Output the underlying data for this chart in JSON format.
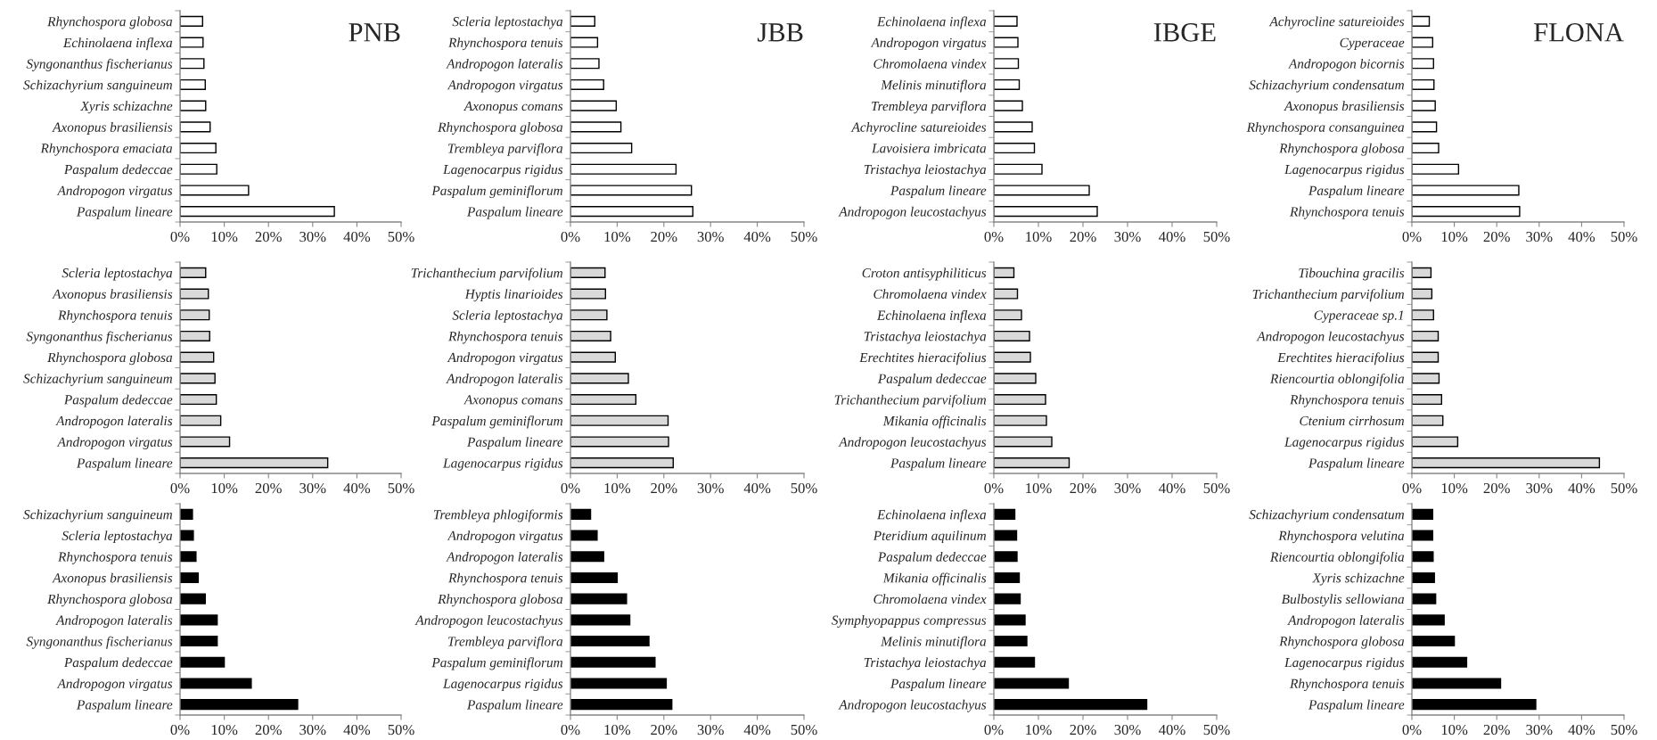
{
  "chart_data": [
    {
      "type": "bar",
      "orientation": "horizontal",
      "title": "PNB",
      "color": "#ffffff",
      "xlim": [
        0,
        50
      ],
      "xticks": [
        {
          "value": 0,
          "label": "0%"
        },
        {
          "value": 10,
          "label": "10%"
        },
        {
          "value": 20,
          "label": "20%"
        },
        {
          "value": 30,
          "label": "30%"
        },
        {
          "value": 40,
          "label": "40%"
        },
        {
          "value": 50,
          "label": "50%"
        }
      ],
      "categories": [
        "Rhynchospora globosa",
        "Echinolaena inflexa",
        "Syngonanthus fischerianus",
        "Schizachyrium sanguineum",
        "Xyris schizachne",
        "Axonopus brasiliensis",
        "Rhynchospora emaciata",
        "Paspalum dedeccae",
        "Andropogon virgatus",
        "Paspalum lineare"
      ],
      "values": [
        5.1,
        5.2,
        5.4,
        5.7,
        5.8,
        6.8,
        8.1,
        8.3,
        15.5,
        34.9
      ]
    },
    {
      "type": "bar",
      "orientation": "horizontal",
      "title": "JBB",
      "color": "#ffffff",
      "xlim": [
        0,
        50
      ],
      "xticks": [
        {
          "value": 0,
          "label": "0%"
        },
        {
          "value": 10,
          "label": "10%"
        },
        {
          "value": 20,
          "label": "20%"
        },
        {
          "value": 30,
          "label": "30%"
        },
        {
          "value": 40,
          "label": "40%"
        },
        {
          "value": 50,
          "label": "50%"
        }
      ],
      "categories": [
        "Scleria leptostachya",
        "Rhynchospora tenuis",
        "Andropogon lateralis",
        "Andropogon virgatus",
        "Axonopus comans",
        "Rhynchospora globosa",
        "Trembleya parviflora",
        "Lagenocarpus rigidus",
        "Paspalum geminiflorum",
        "Paspalum lineare"
      ],
      "values": [
        5.2,
        5.8,
        6.1,
        7.1,
        9.8,
        10.8,
        13.1,
        22.6,
        25.9,
        26.2
      ]
    },
    {
      "type": "bar",
      "orientation": "horizontal",
      "title": "IBGE",
      "color": "#ffffff",
      "xlim": [
        0,
        50
      ],
      "xticks": [
        {
          "value": 0,
          "label": "0%"
        },
        {
          "value": 10,
          "label": "10%"
        },
        {
          "value": 20,
          "label": "20%"
        },
        {
          "value": 30,
          "label": "30%"
        },
        {
          "value": 40,
          "label": "40%"
        },
        {
          "value": 50,
          "label": "50%"
        }
      ],
      "categories": [
        "Echinolaena inflexa",
        "Andropogon virgatus",
        "Chromolaena vindex",
        "Melinis minutiflora",
        "Trembleya parviflora",
        "Achyrocline satureioides",
        "Lavoisiera imbricata",
        "Tristachya leiostachya",
        "Paspalum lineare",
        "Andropogon leucostachyus"
      ],
      "values": [
        5.2,
        5.4,
        5.5,
        5.7,
        6.4,
        8.6,
        9.1,
        10.8,
        21.4,
        23.2
      ]
    },
    {
      "type": "bar",
      "orientation": "horizontal",
      "title": "FLONA",
      "color": "#ffffff",
      "xlim": [
        0,
        50
      ],
      "xticks": [
        {
          "value": 0,
          "label": "0%"
        },
        {
          "value": 10,
          "label": "10%"
        },
        {
          "value": 20,
          "label": "20%"
        },
        {
          "value": 30,
          "label": "30%"
        },
        {
          "value": 40,
          "label": "40%"
        },
        {
          "value": 50,
          "label": "50%"
        }
      ],
      "categories": [
        "Achyrocline satureioides",
        "Cyperaceae",
        "Andropogon bicornis",
        "Schizachyrium condensatum",
        "Axonopus brasiliensis",
        "Rhynchospora consanguinea",
        "Rhynchospora globosa",
        "Lagenocarpus rigidus",
        "Paspalum lineare",
        "Rhynchospora tenuis"
      ],
      "values": [
        4.1,
        4.9,
        5.1,
        5.2,
        5.5,
        5.8,
        6.3,
        11.0,
        25.2,
        25.4
      ]
    },
    {
      "type": "bar",
      "orientation": "horizontal",
      "color": "#d9d9d9",
      "xlim": [
        0,
        50
      ],
      "xticks": [
        {
          "value": 0,
          "label": "0%"
        },
        {
          "value": 10,
          "label": "10%"
        },
        {
          "value": 20,
          "label": "20%"
        },
        {
          "value": 30,
          "label": "30%"
        },
        {
          "value": 40,
          "label": "40%"
        },
        {
          "value": 50,
          "label": "50%"
        }
      ],
      "categories": [
        "Scleria leptostachya",
        "Axonopus brasiliensis",
        "Rhynchospora tenuis",
        "Syngonanthus fischerianus",
        "Rhynchospora globosa",
        "Schizachyrium sanguineum",
        "Paspalum dedeccae",
        "Andropogon lateralis",
        "Andropogon virgatus",
        "Paspalum lineare"
      ],
      "values": [
        5.8,
        6.4,
        6.6,
        6.7,
        7.6,
        7.9,
        8.2,
        9.2,
        11.2,
        33.4
      ]
    },
    {
      "type": "bar",
      "orientation": "horizontal",
      "color": "#d9d9d9",
      "xlim": [
        0,
        50
      ],
      "xticks": [
        {
          "value": 0,
          "label": "0%"
        },
        {
          "value": 10,
          "label": "10%"
        },
        {
          "value": 20,
          "label": "20%"
        },
        {
          "value": 30,
          "label": "30%"
        },
        {
          "value": 40,
          "label": "40%"
        },
        {
          "value": 50,
          "label": "50%"
        }
      ],
      "categories": [
        "Trichanthecium parvifolium",
        "Hyptis linarioides",
        "Scleria leptostachya",
        "Rhynchospora tenuis",
        "Andropogon virgatus",
        "Andropogon lateralis",
        "Axonopus comans",
        "Paspalum geminiflorum",
        "Paspalum lineare",
        "Lagenocarpus rigidus"
      ],
      "values": [
        7.4,
        7.5,
        7.8,
        8.6,
        9.6,
        12.4,
        14.0,
        20.9,
        21.0,
        22.0
      ]
    },
    {
      "type": "bar",
      "orientation": "horizontal",
      "color": "#d9d9d9",
      "xlim": [
        0,
        50
      ],
      "xticks": [
        {
          "value": 0,
          "label": "0%"
        },
        {
          "value": 10,
          "label": "10%"
        },
        {
          "value": 20,
          "label": "20%"
        },
        {
          "value": 30,
          "label": "30%"
        },
        {
          "value": 40,
          "label": "40%"
        },
        {
          "value": 50,
          "label": "50%"
        }
      ],
      "categories": [
        "Croton antisyphiliticus",
        "Chromolaena vindex",
        "Echinolaena inflexa",
        "Tristachya leiostachya",
        "Erechtites hieracifolius",
        "Paspalum dedeccae",
        "Trichanthecium parvifolium",
        "Mikania officinalis",
        "Andropogon leucostachyus",
        "Paspalum lineare"
      ],
      "values": [
        4.5,
        5.3,
        6.2,
        8.0,
        8.2,
        9.4,
        11.6,
        11.8,
        13.0,
        16.9
      ]
    },
    {
      "type": "bar",
      "orientation": "horizontal",
      "color": "#d9d9d9",
      "xlim": [
        0,
        50
      ],
      "xticks": [
        {
          "value": 0,
          "label": "0%"
        },
        {
          "value": 10,
          "label": "10%"
        },
        {
          "value": 20,
          "label": "20%"
        },
        {
          "value": 30,
          "label": "30%"
        },
        {
          "value": 40,
          "label": "40%"
        },
        {
          "value": 50,
          "label": "50%"
        }
      ],
      "categories": [
        "Tibouchina gracilis",
        "Trichanthecium parvifolium",
        "Cyperaceae sp.1",
        "Andropogon leucostachyus",
        "Erechtites hieracifolius",
        "Riencourtia oblongifolia",
        "Rhynchospora tenuis",
        "Ctenium cirrhosum",
        "Lagenocarpus rigidus",
        "Paspalum lineare"
      ],
      "values": [
        4.5,
        4.7,
        5.1,
        6.2,
        6.2,
        6.4,
        7.0,
        7.3,
        10.8,
        44.2
      ]
    },
    {
      "type": "bar",
      "orientation": "horizontal",
      "color": "#000000",
      "xlim": [
        0,
        50
      ],
      "xticks": [
        {
          "value": 0,
          "label": "0%"
        },
        {
          "value": 10,
          "label": "10%"
        },
        {
          "value": 20,
          "label": "20%"
        },
        {
          "value": 30,
          "label": "30%"
        },
        {
          "value": 40,
          "label": "40%"
        },
        {
          "value": 50,
          "label": "50%"
        }
      ],
      "categories": [
        "Schizachyrium sanguineum",
        "Scleria leptostachya",
        "Rhynchospora tenuis",
        "Axonopus brasiliensis",
        "Rhynchospora globosa",
        "Andropogon lateralis",
        "Syngonanthus fischerianus",
        "Paspalum dedeccae",
        "Andropogon virgatus",
        "Paspalum lineare"
      ],
      "values": [
        2.8,
        3.0,
        3.6,
        4.1,
        5.7,
        8.4,
        8.4,
        10.0,
        16.1,
        26.6
      ]
    },
    {
      "type": "bar",
      "orientation": "horizontal",
      "color": "#000000",
      "xlim": [
        0,
        50
      ],
      "xticks": [
        {
          "value": 0,
          "label": "0%"
        },
        {
          "value": 10,
          "label": "10%"
        },
        {
          "value": 20,
          "label": "20%"
        },
        {
          "value": 30,
          "label": "30%"
        },
        {
          "value": 40,
          "label": "40%"
        },
        {
          "value": 50,
          "label": "50%"
        }
      ],
      "categories": [
        "Trembleya phlogiformis",
        "Andropogon virgatus",
        "Andropogon lateralis",
        "Rhynchospora tenuis",
        "Rhynchospora globosa",
        "Andropogon leucostachyus",
        "Trembleya parviflora",
        "Paspalum geminiflorum",
        "Lagenocarpus rigidus",
        "Paspalum lineare"
      ],
      "values": [
        4.3,
        5.7,
        7.1,
        10.0,
        12.0,
        12.7,
        16.8,
        18.1,
        20.5,
        21.7
      ]
    },
    {
      "type": "bar",
      "orientation": "horizontal",
      "color": "#000000",
      "xlim": [
        0,
        50
      ],
      "xticks": [
        {
          "value": 0,
          "label": "0%"
        },
        {
          "value": 10,
          "label": "10%"
        },
        {
          "value": 20,
          "label": "20%"
        },
        {
          "value": 30,
          "label": "30%"
        },
        {
          "value": 40,
          "label": "40%"
        },
        {
          "value": 50,
          "label": "50%"
        }
      ],
      "categories": [
        "Echinolaena inflexa",
        "Pteridium aquilinum",
        "Paspalum dedeccae",
        "Mikania officinalis",
        "Chromolaena vindex",
        "Symphyopappus compressus",
        "Melinis minutiflora",
        "Tristachya leiostachya",
        "Paspalum lineare",
        "Andropogon leucostachyus"
      ],
      "values": [
        4.7,
        5.1,
        5.2,
        5.7,
        5.9,
        7.0,
        7.4,
        9.1,
        16.7,
        34.3
      ]
    },
    {
      "type": "bar",
      "orientation": "horizontal",
      "color": "#000000",
      "xlim": [
        0,
        50
      ],
      "xticks": [
        {
          "value": 0,
          "label": "0%"
        },
        {
          "value": 10,
          "label": "10%"
        },
        {
          "value": 20,
          "label": "20%"
        },
        {
          "value": 30,
          "label": "30%"
        },
        {
          "value": 40,
          "label": "40%"
        },
        {
          "value": 50,
          "label": "50%"
        }
      ],
      "categories": [
        "Schizachyrium condensatum",
        "Rhynchospora velutina",
        "Riencourtia oblongifolia",
        "Xyris schizachne",
        "Bulbostylis sellowiana",
        "Andropogon lateralis",
        "Rhynchospora globosa",
        "Lagenocarpus rigidus",
        "Rhynchospora tenuis",
        "Paspalum lineare"
      ],
      "values": [
        4.9,
        4.9,
        5.0,
        5.3,
        5.6,
        7.6,
        10.0,
        12.9,
        20.9,
        29.2
      ]
    }
  ]
}
